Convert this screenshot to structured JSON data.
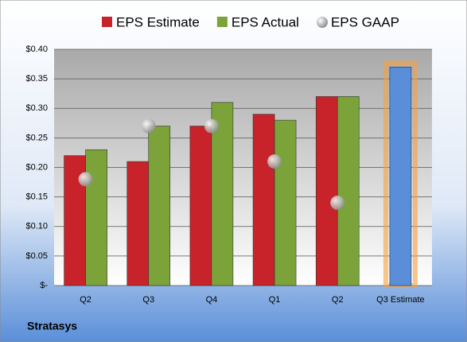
{
  "chart_data": {
    "type": "bar",
    "categories": [
      "Q2",
      "Q3",
      "Q4",
      "Q1",
      "Q2",
      "Q3 Estimate"
    ],
    "series": [
      {
        "name": "EPS Estimate",
        "color": "#c8232b",
        "values": [
          0.22,
          0.21,
          0.27,
          0.29,
          0.32,
          0.37
        ],
        "colors": [
          "#c8232b",
          "#c8232b",
          "#c8232b",
          "#c8232b",
          "#c8232b",
          "#5b8ed8"
        ]
      },
      {
        "name": "EPS Actual",
        "color": "#7ba33a",
        "values": [
          0.23,
          0.27,
          0.31,
          0.28,
          0.32,
          null
        ]
      },
      {
        "name": "EPS GAAP",
        "color": "#a8a8a8",
        "values": [
          0.18,
          0.27,
          0.27,
          0.21,
          0.14,
          null
        ]
      }
    ],
    "ylim": [
      0,
      0.4
    ],
    "yticks": [
      {
        "value": 0,
        "label": "$-"
      },
      {
        "value": 0.05,
        "label": "$0.05"
      },
      {
        "value": 0.1,
        "label": "$0.10"
      },
      {
        "value": 0.15,
        "label": "$0.15"
      },
      {
        "value": 0.2,
        "label": "$0.20"
      },
      {
        "value": 0.25,
        "label": "$0.25"
      },
      {
        "value": 0.3,
        "label": "$0.30"
      },
      {
        "value": 0.35,
        "label": "$0.35"
      },
      {
        "value": 0.4,
        "label": "$0.40"
      }
    ],
    "grid": true,
    "legend": "top",
    "footer": "Stratasys"
  }
}
